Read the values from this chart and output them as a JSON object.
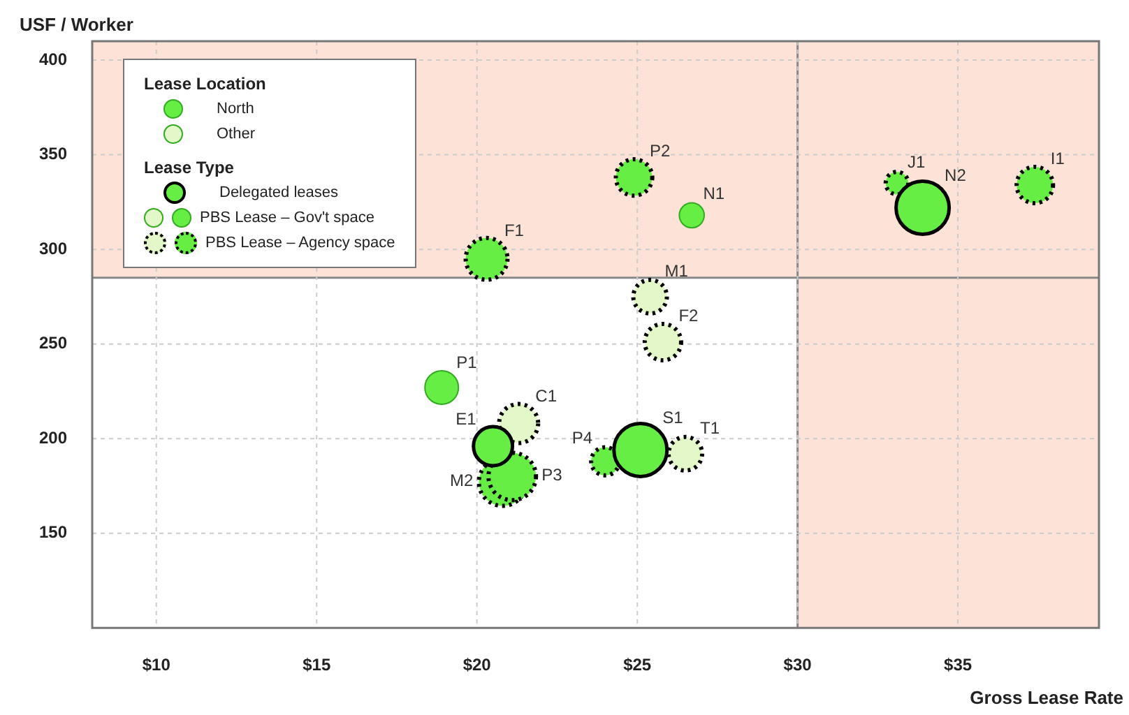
{
  "chart_data": {
    "type": "bubble",
    "ylabel": "USF / Worker",
    "xlabel": "Gross Lease Rate",
    "xlim": [
      8,
      39.4
    ],
    "ylim": [
      100,
      410
    ],
    "xticks": [
      {
        "value": 10,
        "label": "$10"
      },
      {
        "value": 15,
        "label": "$15"
      },
      {
        "value": 20,
        "label": "$20"
      },
      {
        "value": 25,
        "label": "$25"
      },
      {
        "value": 30,
        "label": "$30"
      },
      {
        "value": 35,
        "label": "$35"
      }
    ],
    "yticks": [
      150,
      200,
      250,
      300,
      350,
      400
    ],
    "grid": true,
    "legend": "top left",
    "legend_title": "Lease Type",
    "marker": "circle",
    "ref_lines": [
      {
        "axis": "y",
        "value": 285,
        "color": "#888888"
      },
      {
        "axis": "x",
        "value": 30,
        "color": "#888888"
      }
    ],
    "bands": [
      {
        "axis": "y",
        "from": 285,
        "to": 410,
        "color": "#fde2d8"
      },
      {
        "axis": "x",
        "from": 30,
        "to": 39.4,
        "color": "#fde2d8"
      }
    ],
    "series": [
      {
        "name": "Delegated leases",
        "color": "#66ee44",
        "line_style": "solid",
        "x": [
          20.5,
          25.1,
          33.9
        ],
        "values": [
          196,
          194,
          322
        ],
        "sizes": [
          0.54,
          1,
          1
        ]
      },
      {
        "name": "PBS Lease – Gov't space",
        "color": "#66ee44",
        "x": [
          18.9,
          26.7
        ],
        "values": [
          227,
          318
        ],
        "sizes": [
          0.4,
          0.22
        ]
      },
      {
        "name": "PBS Lease – Agency space",
        "color": "#66ee44",
        "line_style": "dotted",
        "x": [
          20.3,
          24.9,
          33.1,
          37.4,
          20.8,
          21.1,
          24.0
        ],
        "values": [
          295,
          338,
          335,
          334,
          177,
          180,
          188
        ],
        "sizes": [
          0.62,
          0.47,
          0.18,
          0.47,
          0.8,
          0.8,
          0.28
        ]
      },
      {
        "color": "#e3f7c8",
        "line_style": "dotted",
        "x": [
          21.3,
          25.4,
          25.8,
          26.5
        ],
        "values": [
          208,
          275,
          251,
          192
        ],
        "sizes": [
          0.54,
          0.4,
          0.47,
          0.4
        ]
      }
    ],
    "annotations": [
      "Lease Location",
      "North",
      "Other",
      {
        "text": "E1",
        "x": 20.5,
        "y": 196
      },
      {
        "text": "S1",
        "x": 25.1,
        "y": 194
      },
      {
        "text": "N2",
        "x": 33.9,
        "y": 322
      },
      {
        "text": "P1",
        "x": 18.9,
        "y": 227
      },
      {
        "text": "N1",
        "x": 26.7,
        "y": 318
      },
      {
        "text": "F1",
        "x": 20.3,
        "y": 295
      },
      {
        "text": "P2",
        "x": 24.9,
        "y": 338
      },
      {
        "text": "J1",
        "x": 33.1,
        "y": 335
      },
      {
        "text": "I1",
        "x": 37.4,
        "y": 334
      },
      {
        "text": "M2",
        "x": 20.8,
        "y": 177
      },
      {
        "text": "P3",
        "x": 21.1,
        "y": 180
      },
      {
        "text": "P4",
        "x": 24.0,
        "y": 188
      },
      {
        "text": "C1",
        "x": 21.3,
        "y": 208
      },
      {
        "text": "M1",
        "x": 25.4,
        "y": 275
      },
      {
        "text": "F2",
        "x": 25.8,
        "y": 251
      },
      {
        "text": "T1",
        "x": 26.5,
        "y": 192
      }
    ]
  }
}
